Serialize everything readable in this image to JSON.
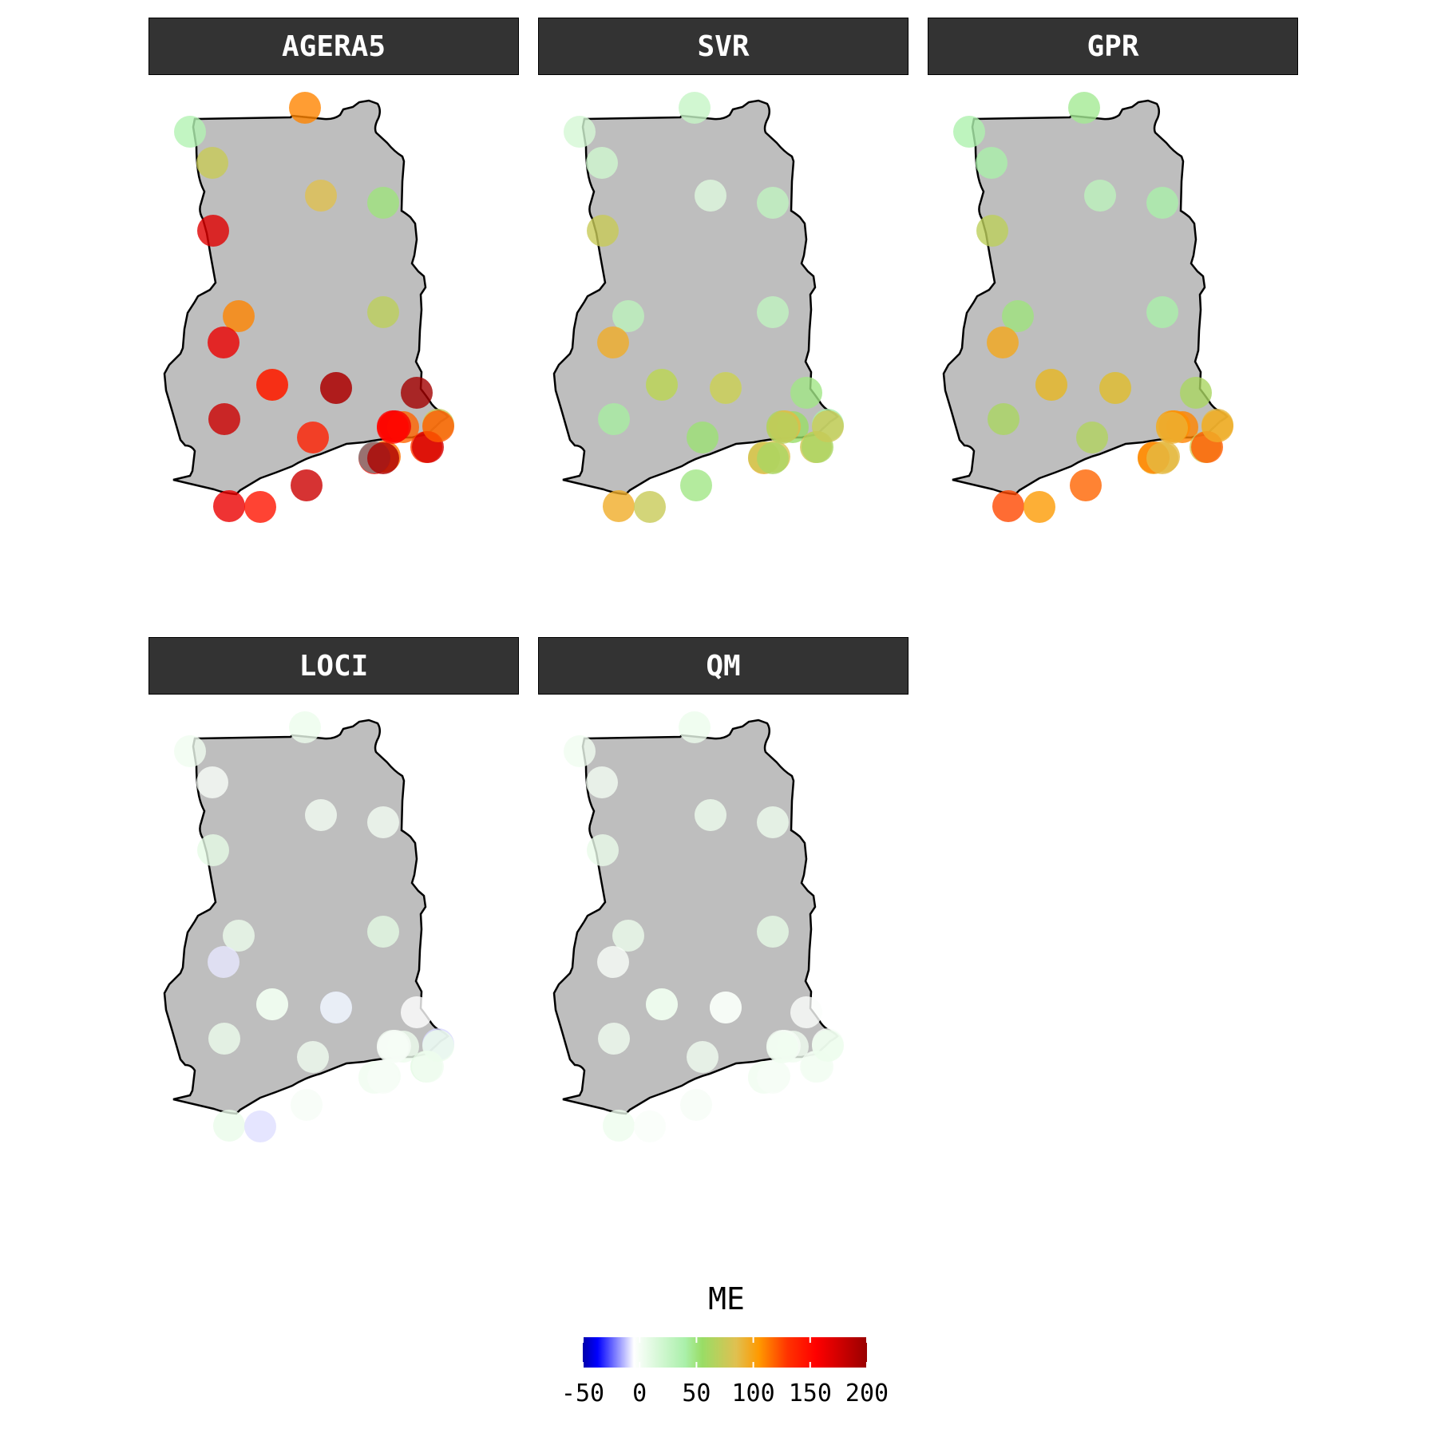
{
  "panels": [
    {
      "title": "AGERA5",
      "values": [
        35,
        75,
        110,
        85,
        50,
        170,
        110,
        70,
        165,
        80,
        205,
        180,
        200,
        140,
        155,
        118,
        75,
        128,
        150,
        115,
        180,
        165,
        145,
        160,
        205,
        175,
        152,
        195,
        190,
        150,
        120
      ]
    },
    {
      "title": "SVR",
      "values": [
        18,
        20,
        25,
        12,
        28,
        75,
        30,
        28,
        95,
        45,
        38,
        42,
        48,
        52,
        62,
        55,
        40,
        78,
        92,
        82,
        48,
        95,
        75,
        88,
        78,
        62,
        68,
        62,
        78,
        72,
        76
      ]
    },
    {
      "title": "GPR",
      "values": [
        38,
        40,
        45,
        30,
        40,
        70,
        50,
        40,
        98,
        62,
        55,
        62,
        62,
        65,
        100,
        110,
        88,
        80,
        95,
        88,
        118,
        125,
        104,
        108,
        110,
        120,
        92,
        88,
        90,
        92,
        95
      ]
    },
    {
      "title": "LOCI",
      "values": [
        3,
        -2,
        5,
        2,
        2,
        8,
        5,
        10,
        -8,
        10,
        -15,
        5,
        -5,
        3,
        2,
        4,
        -10,
        10,
        3,
        2,
        0,
        6,
        -9,
        0,
        2,
        3,
        0,
        0,
        0,
        2,
        5
      ]
    },
    {
      "title": "QM",
      "values": [
        3,
        2,
        5,
        4,
        4,
        6,
        5,
        8,
        -2,
        8,
        -5,
        3,
        -3,
        3,
        2,
        3,
        -2,
        2,
        3,
        1,
        0,
        4,
        -2,
        0,
        2,
        2,
        3,
        0,
        0,
        3,
        5
      ]
    }
  ],
  "legend": {
    "title": "ME",
    "ticks": [
      "-50",
      "0",
      "50",
      "100",
      "150",
      "200"
    ],
    "tick_values": [
      -50,
      0,
      50,
      100,
      150,
      200
    ],
    "domain": [
      -50,
      200
    ],
    "colors": [
      "#0000aa",
      "#0000ff",
      "#ffffff",
      "#aaf0aa",
      "#99dd66",
      "#e0c050",
      "#ff9900",
      "#ff3300",
      "#ff0000",
      "#990000"
    ],
    "color_stops": [
      -50,
      -37,
      -5,
      40,
      55,
      85,
      105,
      130,
      155,
      205
    ],
    "na_color": "#808080"
  }
}
